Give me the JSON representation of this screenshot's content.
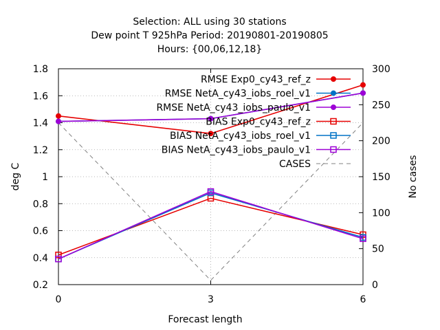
{
  "chart_data": {
    "type": "line",
    "title_lines": [
      "Selection: ALL using    30 stations",
      "Dew point T 925hPa   Period: 20190801-20190805",
      "Hours: {00,06,12,18}"
    ],
    "xlabel": "Forecast length",
    "ylabel": "deg C",
    "y2label": "No cases",
    "x": [
      0,
      3,
      6
    ],
    "xlim": [
      0,
      6
    ],
    "ylim": [
      0.2,
      1.8
    ],
    "y2lim": [
      0,
      300
    ],
    "xticks": [
      "0",
      "3",
      "6"
    ],
    "yticks": [
      "0.2",
      "0.4",
      "0.6",
      "0.8",
      "1",
      "1.2",
      "1.4",
      "1.6",
      "1.8"
    ],
    "y2ticks": [
      "0",
      "50",
      "100",
      "150",
      "200",
      "250",
      "300"
    ],
    "grid": true,
    "legend_position": "top-right",
    "series": [
      {
        "name": "RMSE Exp0_cy43_ref_z",
        "axis": "y",
        "values": [
          1.45,
          1.32,
          1.68
        ],
        "color": "#e60000",
        "marker": "filled-circle",
        "dash": "solid"
      },
      {
        "name": "RMSE NetA_cy43_iobs_roel_v1",
        "axis": "y",
        "values": [
          1.41,
          1.43,
          1.62
        ],
        "color": "#0072c6",
        "marker": "filled-circle",
        "dash": "solid"
      },
      {
        "name": "RMSE NetA_cy43_iobs_paulo_v1",
        "axis": "y",
        "values": [
          1.41,
          1.43,
          1.62
        ],
        "color": "#9d00d6",
        "marker": "filled-circle",
        "dash": "solid"
      },
      {
        "name": "BIAS Exp0_cy43_ref_z",
        "axis": "y",
        "values": [
          0.42,
          0.84,
          0.57
        ],
        "color": "#e60000",
        "marker": "open-square",
        "dash": "solid"
      },
      {
        "name": "BIAS NetA_cy43_iobs_roel_v1",
        "axis": "y",
        "values": [
          0.39,
          0.88,
          0.55
        ],
        "color": "#0072c6",
        "marker": "open-square",
        "dash": "solid"
      },
      {
        "name": "BIAS NetA_cy43_iobs_paulo_v1",
        "axis": "y",
        "values": [
          0.39,
          0.89,
          0.54
        ],
        "color": "#9d00d6",
        "marker": "open-square",
        "dash": "solid"
      },
      {
        "name": "CASES",
        "axis": "y2",
        "values": [
          225,
          6,
          225
        ],
        "color": "#808080",
        "marker": "none",
        "dash": "dashed"
      }
    ]
  }
}
